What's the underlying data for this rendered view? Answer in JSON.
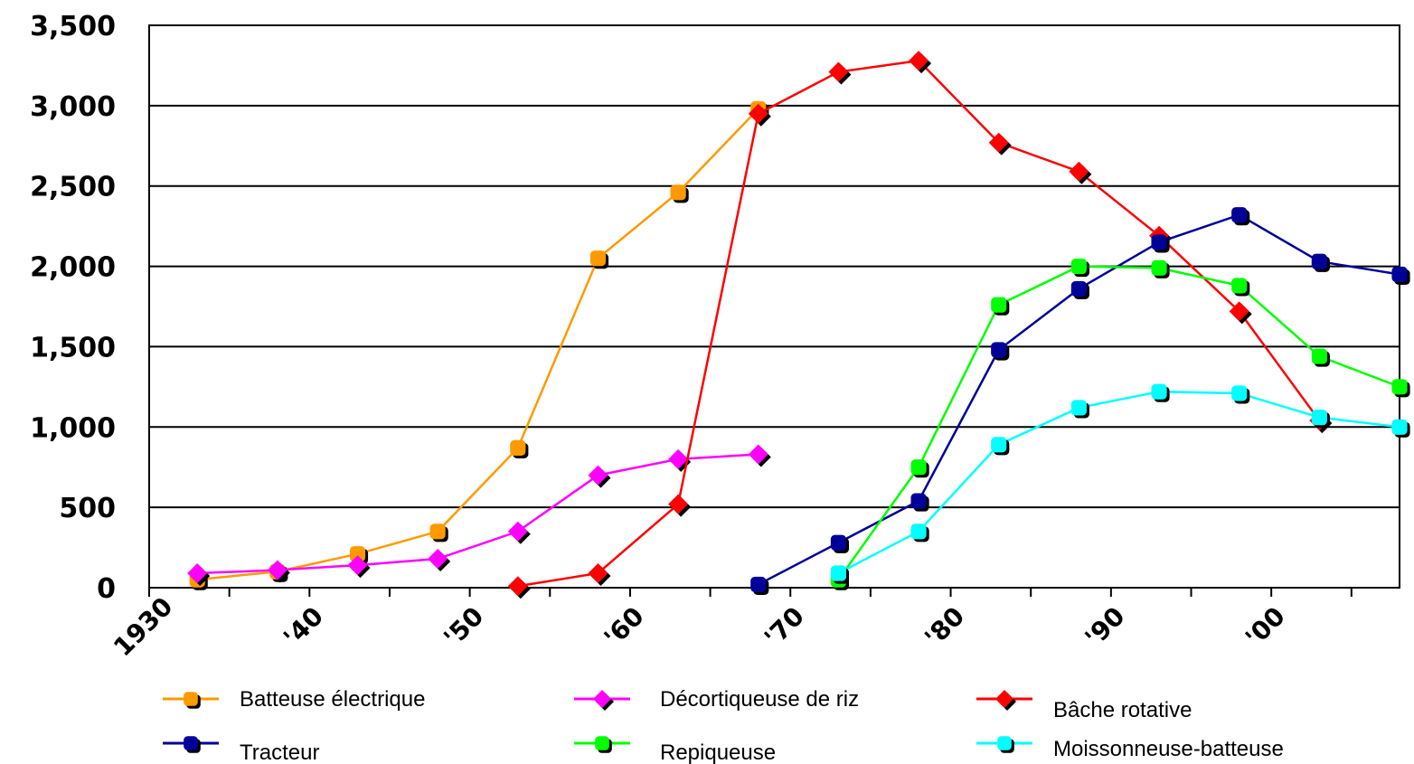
{
  "chart_data": {
    "type": "line",
    "title": "",
    "xlabel": "",
    "ylabel": "",
    "x": [
      1933,
      1938,
      1943,
      1948,
      1953,
      1958,
      1963,
      1968,
      1973,
      1978,
      1983,
      1988,
      1993,
      1998,
      2003,
      2008
    ],
    "xlim": [
      1930,
      2008
    ],
    "ylim": [
      0,
      3500
    ],
    "y_ticks": [
      0,
      500,
      1000,
      1500,
      2000,
      2500,
      3000,
      3500
    ],
    "y_tick_labels": [
      "0",
      "500",
      "1,000",
      "1,500",
      "2,000",
      "2,500",
      "3,000",
      "3,500"
    ],
    "x_ticks": [
      1930,
      1940,
      1950,
      1960,
      1970,
      1980,
      1990,
      2000
    ],
    "x_tick_labels": [
      "1930",
      "'40",
      "'50",
      "'60",
      "'70",
      "'80",
      "'90",
      "'00"
    ],
    "grid": "horizontal",
    "legend_placement": "bottom",
    "series": [
      {
        "name": "Batteuse électrique",
        "color": "#FF9900",
        "marker": "square",
        "values": [
          50,
          100,
          210,
          350,
          870,
          2050,
          2460,
          2980,
          null,
          null,
          null,
          null,
          null,
          null,
          null,
          null
        ]
      },
      {
        "name": "Décortiqueuse de riz",
        "color": "#FF00FF",
        "marker": "diamond",
        "values": [
          90,
          110,
          140,
          180,
          350,
          700,
          800,
          830,
          null,
          null,
          null,
          null,
          null,
          null,
          null,
          null
        ]
      },
      {
        "name": "Bâche rotative",
        "color": "#FF0000",
        "marker": "diamond",
        "values": [
          null,
          null,
          null,
          null,
          10,
          90,
          520,
          2950,
          3210,
          3280,
          2770,
          2590,
          2190,
          1720,
          1040,
          null
        ]
      },
      {
        "name": "Tracteur",
        "color": "#000099",
        "marker": "square",
        "values": [
          null,
          null,
          null,
          null,
          null,
          null,
          null,
          20,
          280,
          540,
          1480,
          1860,
          2150,
          2320,
          2030,
          1950
        ]
      },
      {
        "name": "Repiqueuse",
        "color": "#00FF00",
        "marker": "square",
        "values": [
          null,
          null,
          null,
          null,
          null,
          null,
          null,
          null,
          50,
          750,
          1760,
          2000,
          1990,
          1880,
          1440,
          1250
        ]
      },
      {
        "name": "Moissonneuse-batteuse",
        "color": "#00FFFF",
        "marker": "square",
        "values": [
          null,
          null,
          null,
          null,
          null,
          null,
          null,
          null,
          90,
          350,
          890,
          1120,
          1220,
          1210,
          1060,
          1000
        ]
      }
    ]
  }
}
